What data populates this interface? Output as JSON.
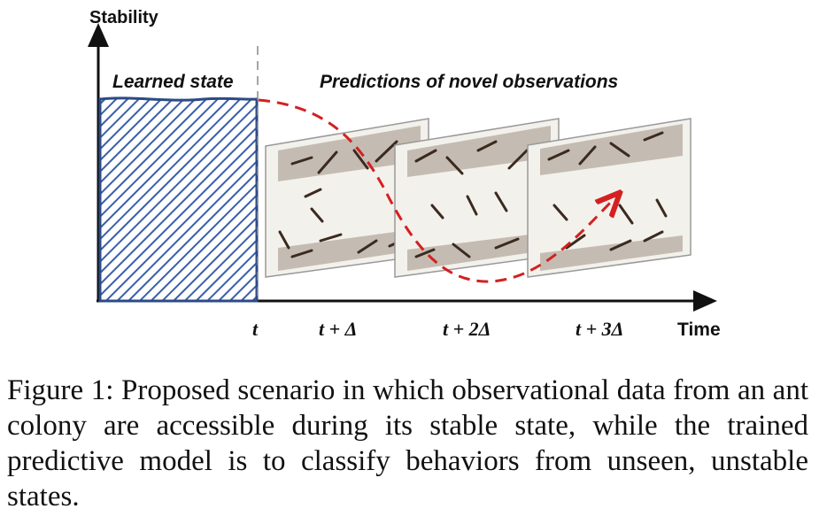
{
  "diagram": {
    "y_axis_label": "Stability",
    "x_axis_label": "Time",
    "learned_state_label": "Learned state",
    "predictions_label": "Predictions of novel observations",
    "time_ticks": [
      "t",
      "t + Δ",
      "t + 2Δ",
      "t + 3Δ"
    ],
    "colors": {
      "axis": "#111111",
      "learned_state_border": "#2c4a86",
      "hatch": "#3a5fa8",
      "prediction_curve": "#d42020",
      "panel_background": "#f3f1ec"
    },
    "panels": [
      {
        "name": "observation-panel-1",
        "content": "ant-colony-photo"
      },
      {
        "name": "observation-panel-2",
        "content": "ant-colony-photo"
      },
      {
        "name": "observation-panel-3",
        "content": "ant-colony-photo"
      }
    ]
  },
  "caption": {
    "text": "Figure 1: Proposed scenario in which observational data from an ant colony are accessible during its stable state, while the trained predictive model is to classify behaviors from unseen, unstable states."
  }
}
